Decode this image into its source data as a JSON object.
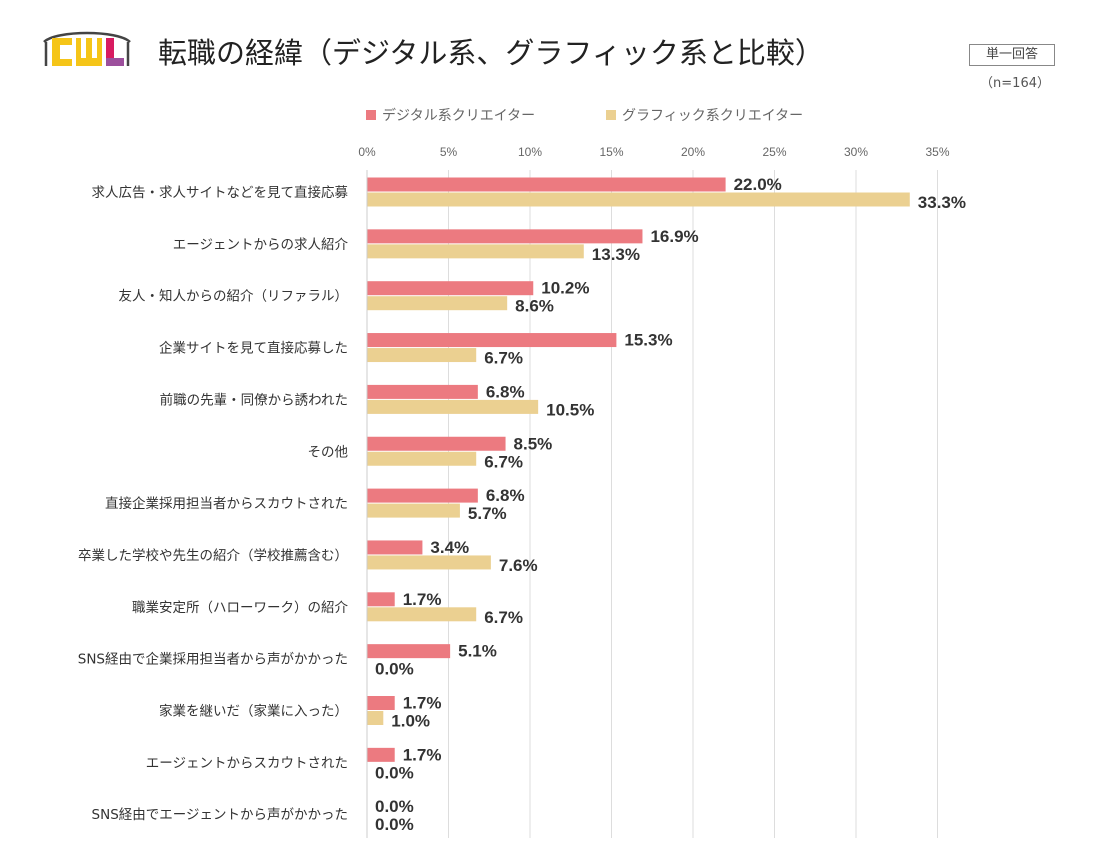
{
  "header": {
    "title": "転職の経緯（デジタル系、グラフィック系と比較）",
    "badge": "単一回答",
    "sample_note": "（n=164）"
  },
  "logo": {
    "name": "CWL logo",
    "text": "CWL",
    "colors": [
      "#f5c518",
      "#9c4f9c",
      "#d81b60"
    ]
  },
  "chart_data": {
    "type": "bar",
    "orientation": "horizontal",
    "categories": [
      "求人広告・求人サイトなどを見て直接応募",
      "エージェントからの求人紹介",
      "友人・知人からの紹介（リファラル）",
      "企業サイトを見て直接応募した",
      "前職の先輩・同僚から誘われた",
      "その他",
      "直接企業採用担当者からスカウトされた",
      "卒業した学校や先生の紹介（学校推薦含む）",
      "職業安定所（ハローワーク）の紹介",
      "SNS経由で企業採用担当者から声がかかった",
      "家業を継いだ（家業に入った）",
      "エージェントからスカウトされた",
      "SNS経由でエージェントから声がかかった"
    ],
    "series": [
      {
        "name": "デジタル系クリエイター",
        "color": "#ec7a80",
        "values": [
          22.0,
          16.9,
          10.2,
          15.3,
          6.8,
          8.5,
          6.8,
          3.4,
          1.7,
          5.1,
          1.7,
          1.7,
          0.0
        ],
        "labels": [
          "22.0%",
          "16.9%",
          "10.2%",
          "15.3%",
          "6.8%",
          "8.5%",
          "6.8%",
          "3.4%",
          "1.7%",
          "5.1%",
          "1.7%",
          "1.7%",
          "0.0%"
        ]
      },
      {
        "name": "グラフィック系クリエイター",
        "color": "#ebd091",
        "values": [
          33.3,
          13.3,
          8.6,
          6.7,
          10.5,
          6.7,
          5.7,
          7.6,
          6.7,
          0.0,
          1.0,
          0.0,
          0.0
        ],
        "labels": [
          "33.3%",
          "13.3%",
          "8.6%",
          "6.7%",
          "10.5%",
          "6.7%",
          "5.7%",
          "7.6%",
          "6.7%",
          "0.0%",
          "1.0%",
          "0.0%",
          "0.0%"
        ]
      }
    ],
    "xlim": [
      0,
      35
    ],
    "ticks": [
      0,
      5,
      10,
      15,
      20,
      25,
      30,
      35
    ],
    "tick_labels": [
      "0%",
      "5%",
      "10%",
      "15%",
      "20%",
      "25%",
      "30%",
      "35%"
    ],
    "grid": true,
    "legend": "top"
  }
}
